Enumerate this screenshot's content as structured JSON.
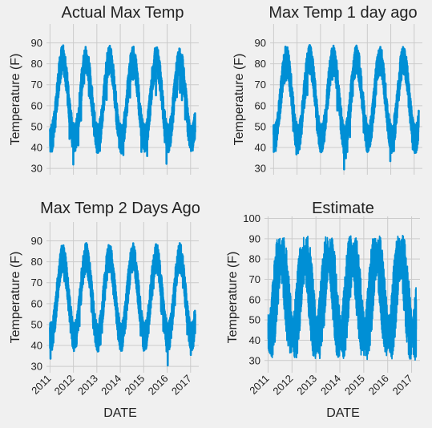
{
  "figure": {
    "background": "#f0f0f0",
    "line_color": "#008fd5",
    "grid_color": "#cbcbcb"
  },
  "chart_data": [
    {
      "type": "line",
      "title": "Actual Max Temp",
      "xlabel": "",
      "ylabel": "Temperature (F)",
      "x_ticks": [
        "2011",
        "2012",
        "2013",
        "2014",
        "2015",
        "2016",
        "2017"
      ],
      "x_range": [
        2011.0,
        2017.2
      ],
      "xlim": [
        2010.85,
        2017.35
      ],
      "y_ticks": [
        30,
        40,
        50,
        60,
        70,
        80,
        90
      ],
      "ylim": [
        27,
        99
      ],
      "grid": true,
      "series_kind": "observed",
      "mean": 63,
      "amplitude": 19,
      "noise": 7,
      "min_value": 29,
      "max_value": 96,
      "x_tick_labels_visible": false
    },
    {
      "type": "line",
      "title": "Max Temp 1 day ago",
      "xlabel": "",
      "ylabel": "Temperature (F)",
      "x_ticks": [
        "2011",
        "2012",
        "2013",
        "2014",
        "2015",
        "2016",
        "2017"
      ],
      "x_range": [
        2011.0,
        2017.2
      ],
      "xlim": [
        2010.85,
        2017.35
      ],
      "y_ticks": [
        30,
        40,
        50,
        60,
        70,
        80,
        90
      ],
      "ylim": [
        27,
        99
      ],
      "grid": true,
      "series_kind": "observed",
      "mean": 63,
      "amplitude": 19,
      "noise": 7,
      "min_value": 29,
      "max_value": 96,
      "x_tick_labels_visible": false
    },
    {
      "type": "line",
      "title": "Max Temp 2 Days Ago",
      "xlabel": "DATE",
      "ylabel": "Temperature (F)",
      "x_ticks": [
        "2011",
        "2012",
        "2013",
        "2014",
        "2015",
        "2016",
        "2017"
      ],
      "x_range": [
        2011.0,
        2017.2
      ],
      "xlim": [
        2010.85,
        2017.35
      ],
      "y_ticks": [
        30,
        40,
        50,
        60,
        70,
        80,
        90
      ],
      "ylim": [
        27,
        99
      ],
      "grid": true,
      "series_kind": "observed",
      "mean": 63,
      "amplitude": 19,
      "noise": 7,
      "min_value": 29,
      "max_value": 96,
      "x_tick_labels_visible": true
    },
    {
      "type": "line",
      "title": "Estimate",
      "xlabel": "DATE",
      "ylabel": "Temperature (F)",
      "x_ticks": [
        "2011",
        "2012",
        "2013",
        "2014",
        "2015",
        "2016",
        "2017"
      ],
      "x_range": [
        2011.0,
        2017.2
      ],
      "xlim": [
        2010.85,
        2017.35
      ],
      "y_ticks": [
        30,
        40,
        50,
        60,
        70,
        80,
        90,
        100
      ],
      "ylim": [
        24,
        101
      ],
      "grid": true,
      "series_kind": "estimate",
      "mean": 61,
      "amplitude": 20,
      "noise": 8,
      "min_value": 26,
      "max_value": 96,
      "x_tick_labels_visible": true
    }
  ]
}
